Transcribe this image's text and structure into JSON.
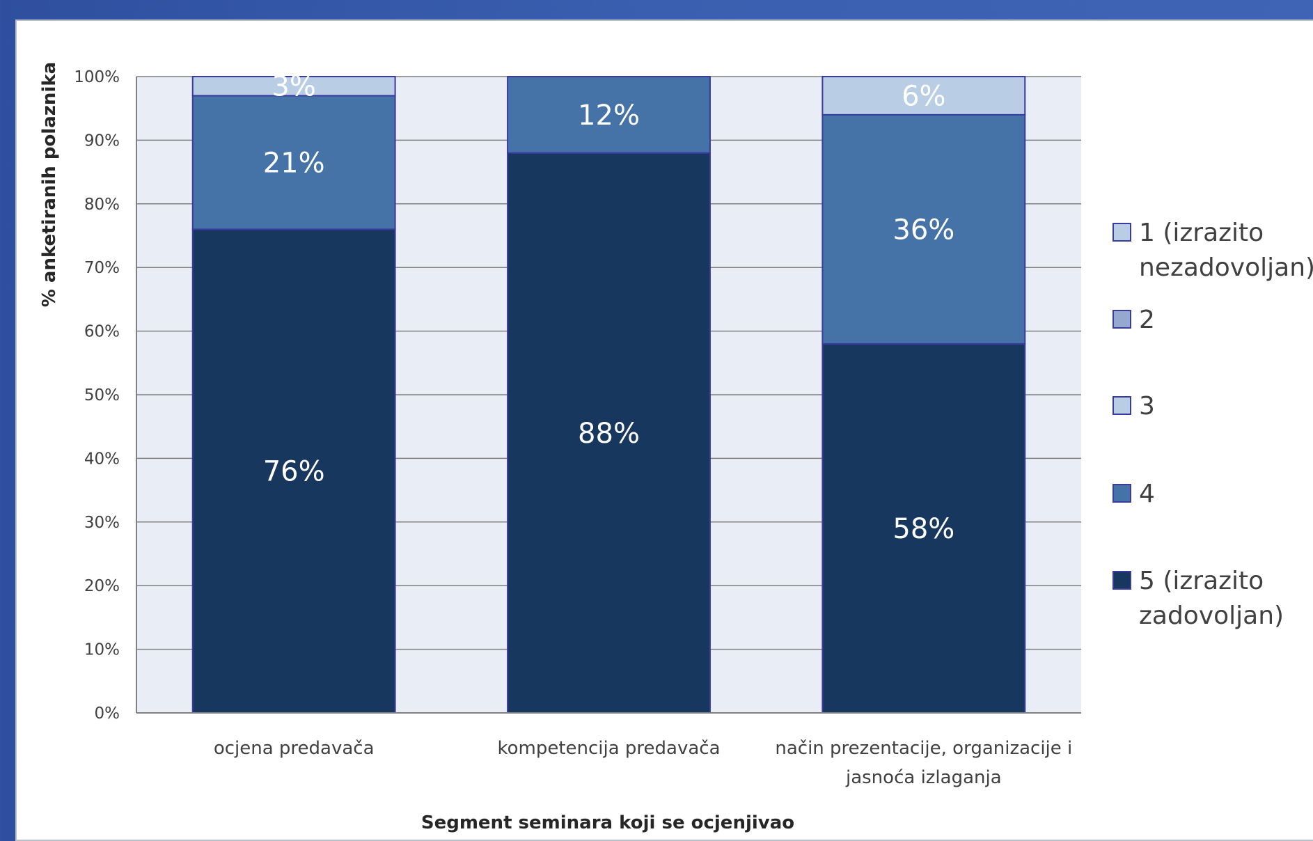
{
  "chart_data": {
    "type": "bar",
    "stacked": true,
    "categories": [
      [
        "ocjena predavača"
      ],
      [
        "kompetencija predavača"
      ],
      [
        "način prezentacije, organizacije i",
        "jasnoća izlaganja"
      ]
    ],
    "xlabel": "Segment seminara koji se ocjenjivao",
    "ylabel": "% anketiranih polaznika",
    "ylim": [
      0,
      100
    ],
    "yticks": [
      "0%",
      "10%",
      "20%",
      "30%",
      "40%",
      "50%",
      "60%",
      "70%",
      "80%",
      "90%",
      "100%"
    ],
    "grid": true,
    "legend_position": "right",
    "series": [
      {
        "name": "5 (izrazito zadovoljan)",
        "legend_lines": [
          "5 (izrazito",
          "zadovoljan)"
        ],
        "color": "#17375e",
        "values": [
          76,
          88,
          58
        ],
        "labels": [
          "76%",
          "88%",
          "58%"
        ]
      },
      {
        "name": "4",
        "legend_lines": [
          "4"
        ],
        "color": "#4572a7",
        "values": [
          21,
          12,
          36
        ],
        "labels": [
          "21%",
          "12%",
          "36%"
        ]
      },
      {
        "name": "3",
        "legend_lines": [
          "3"
        ],
        "color": "#b9cde5",
        "values": [
          3,
          0,
          6
        ],
        "labels": [
          "3%",
          "",
          "6%"
        ]
      },
      {
        "name": "2",
        "legend_lines": [
          "2"
        ],
        "color": "#95a8d0",
        "values": [
          0,
          0,
          0
        ],
        "labels": [
          "",
          "",
          ""
        ]
      },
      {
        "name": "1 (izrazito nezadovoljan)",
        "legend_lines": [
          "1 (izrazito",
          "nezadovoljan)"
        ],
        "color": "#b9cde5",
        "values": [
          0,
          0,
          0
        ],
        "labels": [
          "",
          "",
          ""
        ]
      }
    ],
    "legend_order": [
      4,
      3,
      2,
      1,
      0
    ],
    "colors": {
      "plot_background": "#e9edf5",
      "gridline": "#7f7f7f",
      "bar_border": "#3a3aa0"
    }
  }
}
